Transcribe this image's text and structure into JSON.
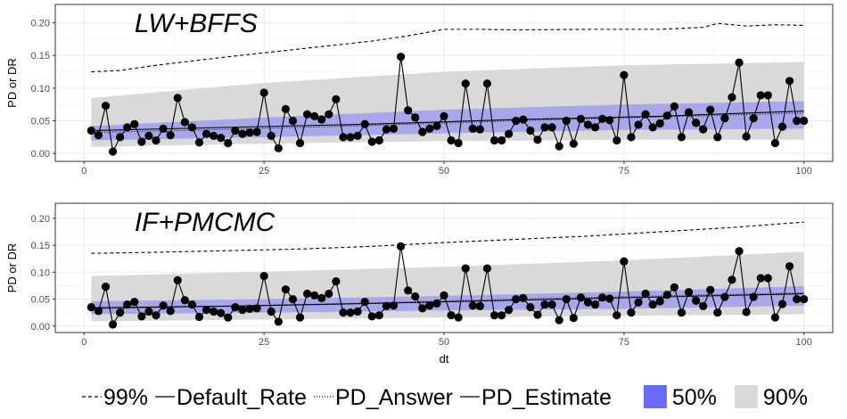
{
  "chart_data": [
    {
      "type": "line",
      "title": "LW+BFFS",
      "xlabel": "",
      "ylabel": "PD or DR",
      "xlim": [
        -4,
        104
      ],
      "ylim": [
        -0.012,
        0.228
      ],
      "x_ticks": [
        0,
        25,
        50,
        75,
        100
      ],
      "x_tick_labels": [
        "0",
        "25",
        "50",
        "75",
        "100"
      ],
      "y_ticks": [
        0.0,
        0.05,
        0.1,
        0.15,
        0.2
      ],
      "y_tick_labels": [
        "0.00",
        "0.05",
        "0.10",
        "0.15",
        "0.20"
      ],
      "grid": true,
      "x": [
        1,
        2,
        3,
        4,
        5,
        6,
        7,
        8,
        9,
        10,
        11,
        12,
        13,
        14,
        15,
        16,
        17,
        18,
        19,
        20,
        21,
        22,
        23,
        24,
        25,
        26,
        27,
        28,
        29,
        30,
        31,
        32,
        33,
        34,
        35,
        36,
        37,
        38,
        39,
        40,
        41,
        42,
        43,
        44,
        45,
        46,
        47,
        48,
        49,
        50,
        51,
        52,
        53,
        54,
        55,
        56,
        57,
        58,
        59,
        60,
        61,
        62,
        63,
        64,
        65,
        66,
        67,
        68,
        69,
        70,
        71,
        72,
        73,
        74,
        75,
        76,
        77,
        78,
        79,
        80,
        81,
        82,
        83,
        84,
        85,
        86,
        87,
        88,
        89,
        90,
        91,
        92,
        93,
        94,
        95,
        96,
        97,
        98,
        99,
        100
      ],
      "series": [
        {
          "name": "Default_Rate",
          "style": "solid-points",
          "values": [
            0.035,
            0.028,
            0.073,
            0.003,
            0.025,
            0.04,
            0.045,
            0.018,
            0.027,
            0.02,
            0.038,
            0.028,
            0.085,
            0.048,
            0.04,
            0.017,
            0.03,
            0.027,
            0.024,
            0.016,
            0.035,
            0.03,
            0.032,
            0.033,
            0.093,
            0.027,
            0.008,
            0.068,
            0.05,
            0.016,
            0.06,
            0.057,
            0.052,
            0.06,
            0.083,
            0.025,
            0.025,
            0.027,
            0.045,
            0.018,
            0.02,
            0.037,
            0.038,
            0.148,
            0.066,
            0.055,
            0.033,
            0.038,
            0.042,
            0.057,
            0.02,
            0.016,
            0.107,
            0.038,
            0.037,
            0.107,
            0.02,
            0.02,
            0.03,
            0.05,
            0.052,
            0.035,
            0.021,
            0.04,
            0.04,
            0.011,
            0.05,
            0.015,
            0.053,
            0.044,
            0.04,
            0.053,
            0.051,
            0.02,
            0.12,
            0.025,
            0.044,
            0.06,
            0.04,
            0.046,
            0.058,
            0.072,
            0.025,
            0.063,
            0.047,
            0.037,
            0.067,
            0.025,
            0.054,
            0.086,
            0.139,
            0.026,
            0.054,
            0.089,
            0.089,
            0.016,
            0.041,
            0.111,
            0.05,
            0.05
          ]
        },
        {
          "name": "PD_Estimate",
          "style": "solid",
          "points": [
            [
              1,
              0.035
            ],
            [
              20,
              0.04
            ],
            [
              40,
              0.045
            ],
            [
              60,
              0.052
            ],
            [
              80,
              0.057
            ],
            [
              100,
              0.065
            ]
          ]
        },
        {
          "name": "PD_Answer",
          "style": "dotted",
          "points": [
            [
              1,
              0.032
            ],
            [
              20,
              0.037
            ],
            [
              40,
              0.043
            ],
            [
              60,
              0.05
            ],
            [
              80,
              0.056
            ],
            [
              100,
              0.062
            ]
          ]
        },
        {
          "name": "99%",
          "style": "dashed",
          "points": [
            [
              1,
              0.125
            ],
            [
              5,
              0.127
            ],
            [
              10,
              0.135
            ],
            [
              20,
              0.148
            ],
            [
              30,
              0.16
            ],
            [
              40,
              0.172
            ],
            [
              45,
              0.18
            ],
            [
              50,
              0.19
            ],
            [
              55,
              0.19
            ],
            [
              60,
              0.189
            ],
            [
              70,
              0.19
            ],
            [
              80,
              0.19
            ],
            [
              86,
              0.193
            ],
            [
              88,
              0.199
            ],
            [
              92,
              0.195
            ],
            [
              96,
              0.197
            ],
            [
              100,
              0.196
            ]
          ]
        }
      ],
      "bands": [
        {
          "name": "90%",
          "points": [
            [
              1,
              0.01,
              0.085
            ],
            [
              25,
              0.015,
              0.108
            ],
            [
              50,
              0.019,
              0.125
            ],
            [
              75,
              0.021,
              0.135
            ],
            [
              100,
              0.021,
              0.14
            ]
          ]
        },
        {
          "name": "50%",
          "points": [
            [
              1,
              0.02,
              0.042
            ],
            [
              25,
              0.025,
              0.055
            ],
            [
              50,
              0.031,
              0.067
            ],
            [
              75,
              0.036,
              0.075
            ],
            [
              100,
              0.038,
              0.08
            ]
          ]
        }
      ]
    },
    {
      "type": "line",
      "title": "IF+PMCMC",
      "xlabel": "dt",
      "ylabel": "PD or DR",
      "xlim": [
        -4,
        104
      ],
      "ylim": [
        -0.012,
        0.228
      ],
      "x_ticks": [
        0,
        25,
        50,
        75,
        100
      ],
      "x_tick_labels": [
        "0",
        "25",
        "50",
        "75",
        "100"
      ],
      "y_ticks": [
        0.0,
        0.05,
        0.1,
        0.15,
        0.2
      ],
      "y_tick_labels": [
        "0.00",
        "0.05",
        "0.10",
        "0.15",
        "0.20"
      ],
      "grid": true,
      "x": [
        1,
        2,
        3,
        4,
        5,
        6,
        7,
        8,
        9,
        10,
        11,
        12,
        13,
        14,
        15,
        16,
        17,
        18,
        19,
        20,
        21,
        22,
        23,
        24,
        25,
        26,
        27,
        28,
        29,
        30,
        31,
        32,
        33,
        34,
        35,
        36,
        37,
        38,
        39,
        40,
        41,
        42,
        43,
        44,
        45,
        46,
        47,
        48,
        49,
        50,
        51,
        52,
        53,
        54,
        55,
        56,
        57,
        58,
        59,
        60,
        61,
        62,
        63,
        64,
        65,
        66,
        67,
        68,
        69,
        70,
        71,
        72,
        73,
        74,
        75,
        76,
        77,
        78,
        79,
        80,
        81,
        82,
        83,
        84,
        85,
        86,
        87,
        88,
        89,
        90,
        91,
        92,
        93,
        94,
        95,
        96,
        97,
        98,
        99,
        100
      ],
      "series": [
        {
          "name": "Default_Rate",
          "style": "solid-points",
          "values": [
            0.035,
            0.028,
            0.073,
            0.003,
            0.025,
            0.04,
            0.045,
            0.018,
            0.027,
            0.02,
            0.038,
            0.028,
            0.085,
            0.048,
            0.04,
            0.017,
            0.03,
            0.027,
            0.024,
            0.016,
            0.035,
            0.03,
            0.032,
            0.033,
            0.093,
            0.027,
            0.008,
            0.068,
            0.05,
            0.016,
            0.06,
            0.057,
            0.052,
            0.06,
            0.083,
            0.025,
            0.025,
            0.027,
            0.045,
            0.018,
            0.02,
            0.037,
            0.038,
            0.148,
            0.066,
            0.055,
            0.033,
            0.038,
            0.042,
            0.057,
            0.02,
            0.016,
            0.107,
            0.038,
            0.037,
            0.107,
            0.02,
            0.02,
            0.03,
            0.05,
            0.052,
            0.035,
            0.021,
            0.04,
            0.04,
            0.011,
            0.05,
            0.015,
            0.053,
            0.044,
            0.04,
            0.053,
            0.051,
            0.02,
            0.12,
            0.025,
            0.044,
            0.06,
            0.04,
            0.046,
            0.058,
            0.072,
            0.025,
            0.063,
            0.047,
            0.037,
            0.067,
            0.025,
            0.054,
            0.086,
            0.139,
            0.026,
            0.054,
            0.089,
            0.089,
            0.016,
            0.041,
            0.111,
            0.05,
            0.05
          ]
        },
        {
          "name": "PD_Estimate",
          "style": "solid",
          "points": [
            [
              1,
              0.034
            ],
            [
              20,
              0.037
            ],
            [
              40,
              0.042
            ],
            [
              60,
              0.048
            ],
            [
              80,
              0.054
            ],
            [
              100,
              0.06
            ]
          ]
        },
        {
          "name": "PD_Answer",
          "style": "dotted",
          "points": [
            [
              1,
              0.032
            ],
            [
              20,
              0.037
            ],
            [
              40,
              0.043
            ],
            [
              60,
              0.05
            ],
            [
              80,
              0.056
            ],
            [
              100,
              0.062
            ]
          ]
        },
        {
          "name": "99%",
          "style": "dashed",
          "points": [
            [
              1,
              0.135
            ],
            [
              10,
              0.137
            ],
            [
              20,
              0.14
            ],
            [
              30,
              0.143
            ],
            [
              40,
              0.148
            ],
            [
              50,
              0.155
            ],
            [
              60,
              0.161
            ],
            [
              70,
              0.167
            ],
            [
              80,
              0.175
            ],
            [
              90,
              0.183
            ],
            [
              100,
              0.193
            ]
          ]
        }
      ],
      "bands": [
        {
          "name": "90%",
          "points": [
            [
              1,
              0.009,
              0.093
            ],
            [
              25,
              0.012,
              0.101
            ],
            [
              50,
              0.016,
              0.11
            ],
            [
              75,
              0.019,
              0.122
            ],
            [
              100,
              0.022,
              0.138
            ]
          ]
        },
        {
          "name": "50%",
          "points": [
            [
              1,
              0.022,
              0.046
            ],
            [
              25,
              0.025,
              0.05
            ],
            [
              50,
              0.029,
              0.056
            ],
            [
              75,
              0.032,
              0.064
            ],
            [
              100,
              0.038,
              0.074
            ]
          ]
        }
      ]
    }
  ],
  "legend": {
    "placement": "bottom",
    "items": [
      {
        "label": "99%",
        "key": "dashed-line"
      },
      {
        "label": "Default_Rate",
        "key": "solid-line"
      },
      {
        "label": "PD_Answer",
        "key": "dotted-line"
      },
      {
        "label": "PD_Estimate",
        "key": "solid-line"
      },
      {
        "label": "50%",
        "key": "fill",
        "color": "#6a6aff"
      },
      {
        "label": "90%",
        "key": "fill",
        "color": "#d9d9d9"
      }
    ]
  },
  "colors": {
    "band_90": "#d9d9d9",
    "band_50": "#6a6aff",
    "panel_background": "#ffffff",
    "grid": "#ebebeb",
    "line": "#000000"
  }
}
